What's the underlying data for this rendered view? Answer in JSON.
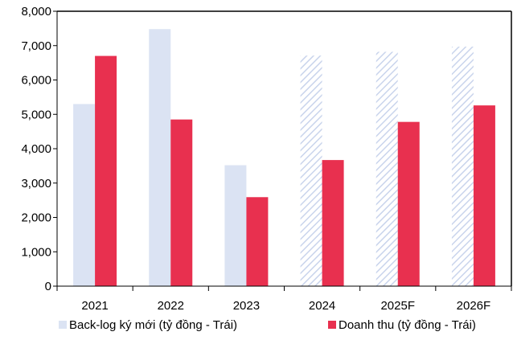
{
  "chart_data": {
    "type": "bar",
    "categories": [
      "2021",
      "2022",
      "2023",
      "2024",
      "2025F",
      "2026F"
    ],
    "series": [
      {
        "name": "Back-log ký mới (tỷ đồng - Trái)",
        "values": [
          5300,
          7480,
          3520,
          6710,
          6820,
          6970
        ],
        "color": "#dbe3f3",
        "styles": [
          "solid",
          "solid",
          "solid",
          "hatched",
          "hatched",
          "hatched"
        ]
      },
      {
        "name": "Doanh thu (tỷ đồng - Trái)",
        "values": [
          6700,
          4850,
          2590,
          3670,
          4780,
          5260
        ],
        "color": "#e8304f",
        "styles": [
          "solid",
          "solid",
          "solid",
          "solid",
          "solid",
          "solid"
        ]
      }
    ],
    "yticks": [
      "0",
      "1,000",
      "2,000",
      "3,000",
      "4,000",
      "5,000",
      "6,000",
      "7,000",
      "8,000"
    ],
    "ylim": [
      0,
      8000
    ],
    "title": "",
    "xlabel": "",
    "ylabel": "",
    "grid": false,
    "legend_position": "bottom"
  }
}
